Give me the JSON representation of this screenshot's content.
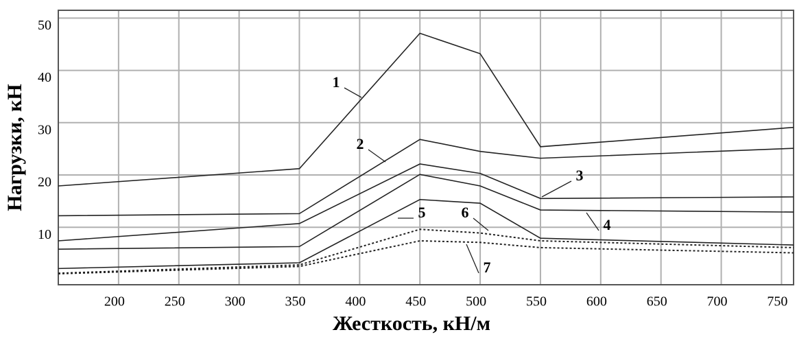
{
  "chart_data": {
    "type": "line",
    "x_label": "Жесткость, кН/м",
    "y_label": "Нагрузки, кН",
    "x": [
      150,
      350,
      450,
      500,
      550,
      760
    ],
    "series": [
      {
        "name": "1",
        "color": "#222222",
        "dash": false,
        "values": [
          17.9,
          21.2,
          47.1,
          43.2,
          25.4,
          29.1
        ]
      },
      {
        "name": "2",
        "color": "#222222",
        "dash": false,
        "values": [
          12.2,
          12.6,
          26.8,
          24.5,
          23.2,
          25.1
        ]
      },
      {
        "name": "3",
        "color": "#222222",
        "dash": false,
        "values": [
          7.4,
          10.7,
          22.1,
          20.3,
          15.5,
          15.8
        ]
      },
      {
        "name": "4",
        "color": "#222222",
        "dash": false,
        "values": [
          5.8,
          6.3,
          20.1,
          17.9,
          13.3,
          12.9
        ]
      },
      {
        "name": "5",
        "color": "#222222",
        "dash": false,
        "values": [
          2.1,
          3.2,
          15.3,
          14.6,
          7.9,
          6.6
        ]
      },
      {
        "name": "6",
        "color": "#222222",
        "dash": true,
        "values": [
          1.2,
          2.8,
          9.6,
          8.9,
          7.4,
          6.1
        ]
      },
      {
        "name": "7",
        "color": "#222222",
        "dash": true,
        "values": [
          1.1,
          2.5,
          7.4,
          7.1,
          6.1,
          5.1
        ]
      }
    ],
    "xlim": [
      150,
      760
    ],
    "ylim": [
      -1,
      51.5
    ],
    "xticks": [
      200,
      250,
      300,
      350,
      400,
      450,
      500,
      550,
      600,
      650,
      700,
      750
    ],
    "yticks": [
      10,
      20,
      30,
      40,
      50
    ],
    "grid": true
  }
}
